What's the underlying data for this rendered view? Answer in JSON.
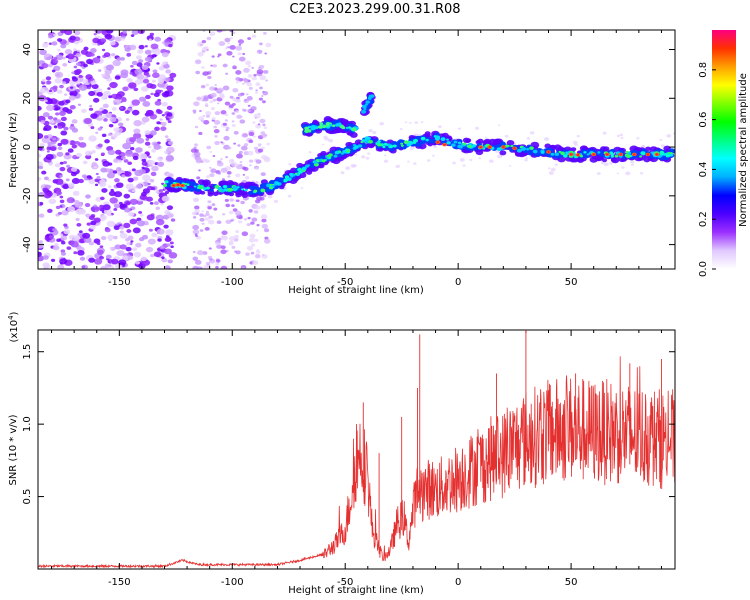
{
  "figure": {
    "title": "C2E3.2023.299.00.31.R08"
  },
  "colors": {
    "snr_line": "#e53030",
    "axis": "#000000"
  },
  "chart_data": [
    {
      "type": "heatmap",
      "xlabel": "Height of straight line (km)",
      "ylabel": "Frequency (Hz)",
      "xlim": [
        -186,
        96
      ],
      "ylim": [
        -50,
        48
      ],
      "xticks": [
        -150,
        -100,
        -50,
        0,
        50
      ],
      "yticks": [
        -40,
        -20,
        0,
        20,
        40
      ],
      "xtick_labels": [
        "-150",
        "-100",
        "-50",
        "0",
        "50"
      ],
      "ytick_labels": [
        "-40",
        "-20",
        "0",
        "20",
        "40"
      ],
      "colorbar": {
        "label": "Normalized spectral amplitude",
        "range": [
          0,
          0.96
        ],
        "ticks": [
          0,
          0.2,
          0.4,
          0.6,
          0.8
        ],
        "tick_labels": [
          "0.0",
          "0.2",
          "0.4",
          "0.6",
          "0.8"
        ],
        "colormap": [
          "#ffffff",
          "#e0c8ff",
          "#9b30ff",
          "#4b00ff",
          "#0000ff",
          "#00b0ff",
          "#00ffff",
          "#00ff80",
          "#00ff00",
          "#80ff00",
          "#ffff00",
          "#ffa000",
          "#ff3000",
          "#ff0080"
        ]
      },
      "trace": {
        "x": [
          -130,
          -120,
          -110,
          -100,
          -90,
          -80,
          -70,
          -60,
          -50,
          -40,
          -30,
          -20,
          -10,
          0,
          10,
          20,
          30,
          40,
          50,
          60,
          70,
          80,
          95
        ],
        "y": [
          -15,
          -16,
          -17,
          -17,
          -18,
          -15,
          -10,
          -5,
          -2,
          3,
          0,
          2,
          4,
          1,
          0,
          0,
          -1,
          -2,
          -3,
          -3,
          -3,
          -3,
          -3
        ]
      },
      "upper_trace": {
        "x": [
          -68,
          -60,
          -52,
          -45
        ],
        "y": [
          7,
          9,
          9,
          7
        ]
      },
      "upper_branch": {
        "x": [
          -42,
          -40,
          -38
        ],
        "y": [
          15,
          18,
          21
        ]
      }
    },
    {
      "type": "line",
      "xlabel": "Height of straight line (km)",
      "ylabel": "SNR (10 * v/v)",
      "y_scale_label": "(x10",
      "y_scale_exponent": "4",
      "y_scale_close": ")",
      "xlim": [
        -186,
        96
      ],
      "ylim": [
        0,
        1.65
      ],
      "xticks": [
        -150,
        -100,
        -50,
        0,
        50
      ],
      "yticks": [
        0.5,
        1.0,
        1.5
      ],
      "xtick_labels": [
        "-150",
        "-100",
        "-50",
        "0",
        "50"
      ],
      "ytick_labels": [
        "0.5",
        "1.0",
        "1.5"
      ],
      "envelope": {
        "x": [
          -186,
          -130,
          -122,
          -115,
          -100,
          -80,
          -70,
          -60,
          -55,
          -50,
          -48,
          -45,
          -43,
          -40,
          -38,
          -35,
          -33,
          -30,
          -27,
          -24,
          -22,
          -20,
          -18,
          -15,
          -12,
          -10,
          -5,
          0,
          5,
          10,
          15,
          20,
          25,
          30,
          35,
          40,
          50,
          60,
          70,
          80,
          90,
          96
        ],
        "y": [
          0.02,
          0.02,
          0.06,
          0.03,
          0.03,
          0.03,
          0.06,
          0.1,
          0.18,
          0.3,
          0.5,
          0.85,
          0.9,
          0.7,
          0.3,
          0.15,
          0.08,
          0.15,
          0.35,
          0.4,
          0.2,
          0.45,
          0.6,
          0.6,
          0.62,
          0.6,
          0.65,
          0.7,
          0.75,
          0.8,
          0.85,
          0.88,
          0.95,
          1.0,
          1.02,
          1.05,
          1.08,
          1.05,
          1.05,
          1.02,
          1.0,
          1.0
        ]
      },
      "spikes": [
        {
          "x": -42,
          "y": 1.15
        },
        {
          "x": -45,
          "y": 1.0
        },
        {
          "x": -17,
          "y": 1.62
        },
        {
          "x": -18,
          "y": 1.25
        },
        {
          "x": -35,
          "y": 0.8
        },
        {
          "x": -25,
          "y": 1.05
        },
        {
          "x": 30,
          "y": 1.65
        },
        {
          "x": 17,
          "y": 1.35
        },
        {
          "x": 52,
          "y": 1.35
        },
        {
          "x": 76,
          "y": 1.42
        },
        {
          "x": 90,
          "y": 1.45
        }
      ]
    }
  ]
}
